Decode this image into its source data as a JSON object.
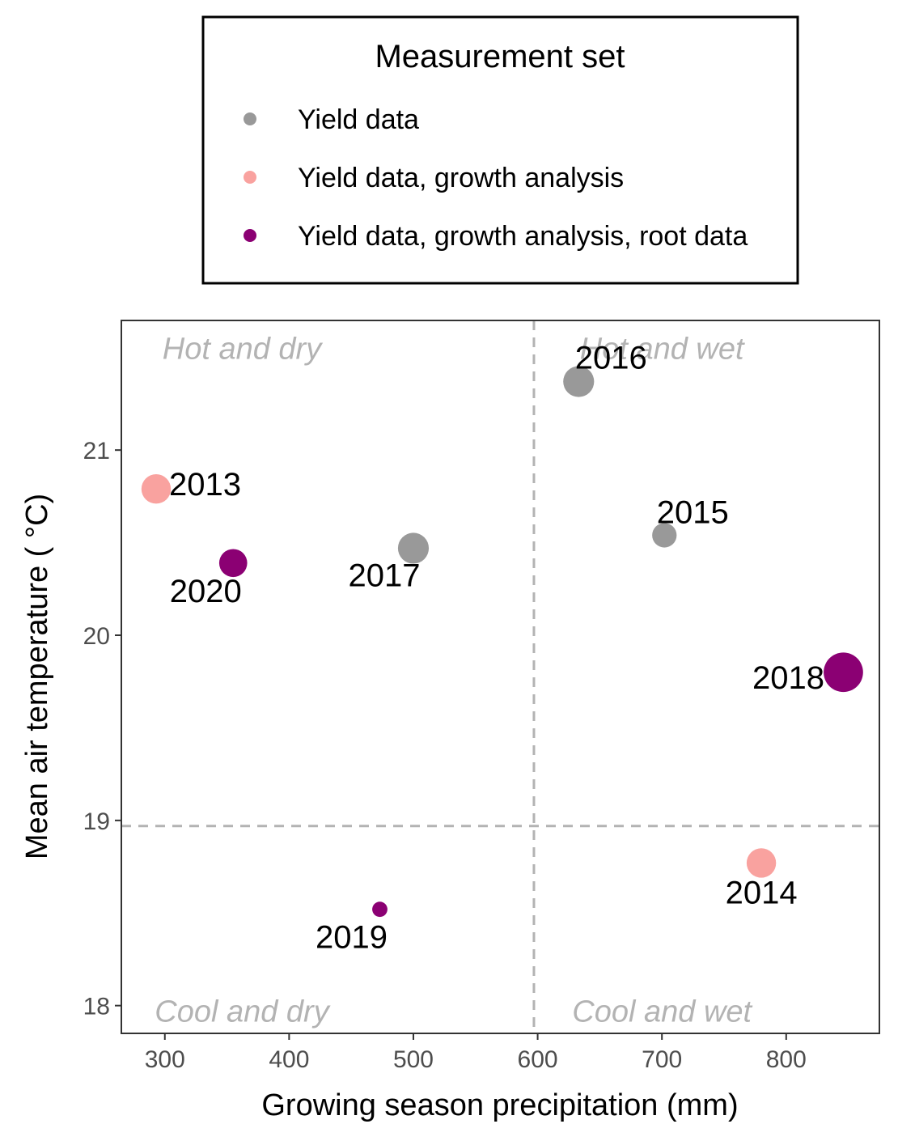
{
  "legend": {
    "title": "Measurement set",
    "items": [
      {
        "label": "Yield data",
        "color": "#999999"
      },
      {
        "label": "Yield data, growth analysis",
        "color": "#f9a29f"
      },
      {
        "label": "Yield data, growth analysis, root data",
        "color": "#8b0073"
      }
    ]
  },
  "chart_data": {
    "type": "scatter",
    "xlabel": "Growing season precipitation (mm)",
    "ylabel": "Mean air temperature ( °C)",
    "xlim": [
      265,
      875
    ],
    "ylim": [
      17.85,
      21.7
    ],
    "xticks": [
      300,
      400,
      500,
      600,
      700,
      800
    ],
    "yticks": [
      18,
      19,
      20,
      21
    ],
    "grid": false,
    "legend_position": "top",
    "reference_lines": {
      "x": 597,
      "y": 18.97
    },
    "quadrant_labels": [
      {
        "text": "Hot and dry",
        "x": 362,
        "y": 21.55
      },
      {
        "text": "Hot and wet",
        "x": 700,
        "y": 21.55
      },
      {
        "text": "Cool and dry",
        "x": 362,
        "y": 17.97
      },
      {
        "text": "Cool and wet",
        "x": 700,
        "y": 17.97
      }
    ],
    "points": [
      {
        "label": "2013",
        "x": 293,
        "y": 20.79,
        "set": 1,
        "size": 3.0
      },
      {
        "label": "2014",
        "x": 780,
        "y": 18.77,
        "set": 1,
        "size": 3.0
      },
      {
        "label": "2015",
        "x": 702,
        "y": 20.54,
        "set": 0,
        "size": 2.3
      },
      {
        "label": "2016",
        "x": 633,
        "y": 21.37,
        "set": 0,
        "size": 3.2
      },
      {
        "label": "2017",
        "x": 500,
        "y": 20.47,
        "set": 0,
        "size": 3.2
      },
      {
        "label": "2018",
        "x": 846,
        "y": 19.8,
        "set": 2,
        "size": 4.4
      },
      {
        "label": "2019",
        "x": 473,
        "y": 18.52,
        "set": 2,
        "size": 1.0
      },
      {
        "label": "2020",
        "x": 355,
        "y": 20.39,
        "set": 2,
        "size": 2.8
      }
    ]
  }
}
